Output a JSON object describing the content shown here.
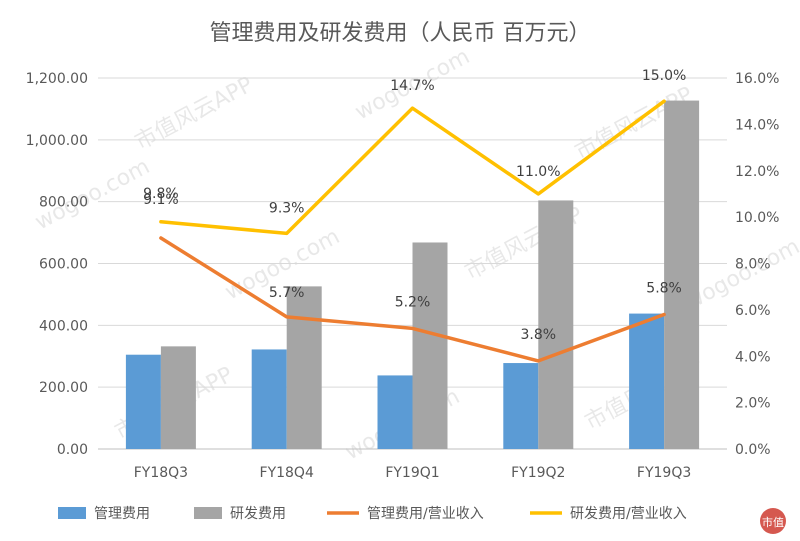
{
  "chart_data": {
    "type": "bar",
    "title": "管理费用及研发费用（人民币 百万元）",
    "categories": [
      "FY18Q3",
      "FY18Q4",
      "FY19Q1",
      "FY19Q2",
      "FY19Q3"
    ],
    "series": [
      {
        "name": "管理费用",
        "type": "bar",
        "axis": "left",
        "color": "#5b9bd5",
        "values": [
          305,
          322,
          238,
          278,
          438
        ]
      },
      {
        "name": "研发费用",
        "type": "bar",
        "axis": "left",
        "color": "#a5a5a5",
        "values": [
          332,
          526,
          668,
          804,
          1127
        ]
      },
      {
        "name": "管理费用/营业收入",
        "type": "line",
        "axis": "right",
        "color": "#ed7d31",
        "values": [
          9.1,
          5.7,
          5.2,
          3.8,
          5.8
        ],
        "labels": [
          "9.1%",
          "5.7%",
          "5.2%",
          "3.8%",
          "5.8%"
        ]
      },
      {
        "name": "研发费用/营业收入",
        "type": "line",
        "axis": "right",
        "color": "#ffc000",
        "values": [
          9.8,
          9.3,
          14.7,
          11.0,
          15.0
        ],
        "labels": [
          "9.8%",
          "9.3%",
          "14.7%",
          "11.0%",
          "15.0%"
        ]
      }
    ],
    "y_left": {
      "min": 0,
      "max": 1200,
      "ticks": [
        "0.00",
        "200.00",
        "400.00",
        "600.00",
        "800.00",
        "1,000.00",
        "1,200.00"
      ]
    },
    "y_right": {
      "min": 0,
      "max": 16,
      "ticks": [
        "0.0%",
        "2.0%",
        "4.0%",
        "6.0%",
        "8.0%",
        "10.0%",
        "12.0%",
        "14.0%",
        "16.0%"
      ]
    },
    "grid": true,
    "legend_position": "bottom"
  },
  "watermark": {
    "text": "市值风云APP",
    "domain": "wogoo.com"
  },
  "logo": {
    "text": "市值"
  }
}
